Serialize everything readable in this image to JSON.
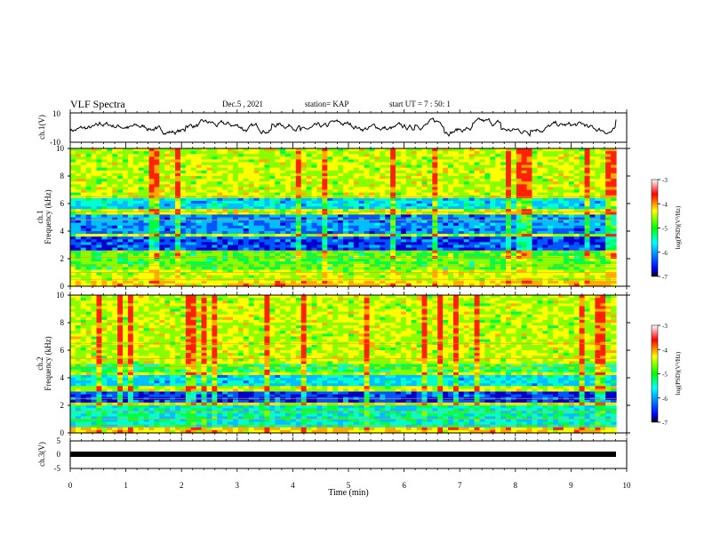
{
  "header": {
    "title": "VLF Spectra",
    "date": "Dec.5 , 2021",
    "station": "station= KAP",
    "start": "start  UT =   7 : 50: 1"
  },
  "colors": {
    "spectrogram_scale": [
      "#000000",
      "#0000ff",
      "#00ffff",
      "#00ff00",
      "#ffff00",
      "#ff0000",
      "#ffffff"
    ],
    "waveform": "#000000"
  },
  "chart_data": [
    {
      "type": "line",
      "name": "ch1-waveform",
      "ylabel": "ch.1(V)",
      "ylim": [
        -10,
        10
      ],
      "yticks": [
        "10",
        "-10"
      ],
      "xlim": [
        0,
        10
      ],
      "values_sample": [
        -2,
        2,
        0,
        -4,
        3,
        1,
        -1,
        4,
        -3,
        2,
        0,
        -2,
        5,
        -1,
        3,
        -4,
        2,
        1,
        -3,
        4
      ]
    },
    {
      "type": "heatmap",
      "name": "ch1-spectrogram",
      "ylabel": "ch.1\nFrequency (kHz)",
      "yticks": [
        "0",
        "2",
        "4",
        "6",
        "8",
        "10"
      ],
      "ylim": [
        0,
        10
      ],
      "xlim": [
        0,
        10
      ],
      "colorbar": {
        "label": "log(PSD)(V²/Hz)",
        "ticks": [
          "-3",
          "-4",
          "-5",
          "-6",
          "-7"
        ],
        "range": [
          -7,
          -3
        ]
      }
    },
    {
      "type": "heatmap",
      "name": "ch2-spectrogram",
      "ylabel": "ch.2\nFrequency (kHz)",
      "yticks": [
        "0",
        "2",
        "4",
        "6",
        "8",
        "10"
      ],
      "ylim": [
        0,
        10
      ],
      "xlim": [
        0,
        10
      ],
      "colorbar": {
        "label": "log(PSD)(V²/Hz)",
        "ticks": [
          "-3",
          "-4",
          "-5",
          "-6",
          "-7"
        ],
        "range": [
          -7,
          -3
        ]
      }
    },
    {
      "type": "line",
      "name": "ch3-waveform",
      "ylabel": "ch.3(V)",
      "ylim": [
        -5,
        5
      ],
      "yticks": [
        "5",
        "0",
        "-5"
      ],
      "xlim": [
        0,
        10
      ],
      "values_sample": [
        0,
        0,
        0,
        0,
        0
      ]
    }
  ],
  "xaxis": {
    "label": "Time  (min)",
    "ticks": [
      "0",
      "1",
      "2",
      "3",
      "4",
      "5",
      "6",
      "7",
      "8",
      "9",
      "10"
    ]
  }
}
